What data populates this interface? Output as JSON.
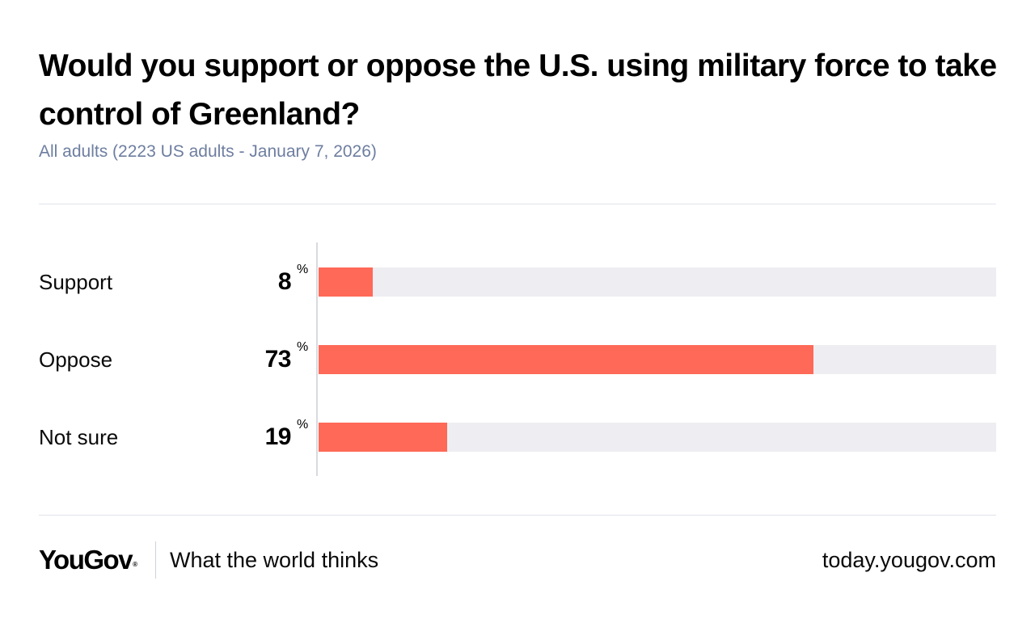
{
  "title": "Would you support or oppose the U.S. using military force to take control of Greenland?",
  "subtitle": "All adults (2223 US adults - January 7, 2026)",
  "chart_data": {
    "type": "bar",
    "orientation": "horizontal",
    "title": "Would you support or oppose the U.S. using military force to take control of Greenland?",
    "subtitle": "All adults (2223 US adults - January 7, 2026)",
    "categories": [
      "Support",
      "Oppose",
      "Not sure"
    ],
    "values": [
      8,
      73,
      19
    ],
    "unit": "%",
    "xlim": [
      0,
      100
    ],
    "xlabel": "",
    "ylabel": "",
    "grid": false,
    "bar_color": "#ff6957",
    "track_color": "#eeeef2"
  },
  "footer": {
    "brand": "YouGov",
    "registered_mark": "®",
    "tagline": "What the world thinks",
    "url": "today.yougov.com"
  }
}
